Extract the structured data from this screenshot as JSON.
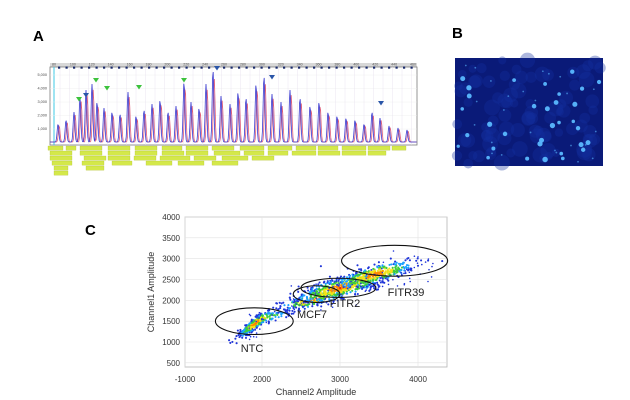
{
  "panels": {
    "a": {
      "letter": "A"
    },
    "b": {
      "letter": "B"
    },
    "c": {
      "letter": "C"
    }
  },
  "panel_a": {
    "x_ticks": [
      "80",
      "100",
      "120",
      "140",
      "160",
      "180",
      "200",
      "220",
      "240",
      "260",
      "280",
      "300",
      "320",
      "340",
      "360",
      "380",
      "400",
      "420",
      "440",
      "460"
    ],
    "y_ticks": [
      "5,000",
      "4,000",
      "3,000",
      "2,000",
      "1,000"
    ],
    "trace_colors": {
      "red": "#e0607a",
      "blue": "#3a3ad0"
    },
    "marker_colors": {
      "green": "#3cc23c",
      "blue": "#2a55a8"
    },
    "label_box_color": "#d4e84a"
  },
  "panel_b": {
    "background_color": "#0a1a78",
    "dot_color": "#5ab8ff"
  },
  "chart_data": {
    "type": "scatter",
    "title": "",
    "xlabel": "Channel2 Amplitude",
    "ylabel": "Channel1 Amplitude",
    "xlim": [
      -1000,
      4400
    ],
    "ylim": [
      400,
      4000
    ],
    "x_ticks": [
      "-1000",
      "2000",
      "3000",
      "4000"
    ],
    "y_ticks": [
      "4000",
      "3500",
      "3000",
      "2500",
      "2000",
      "1500",
      "1000",
      "500"
    ],
    "grid": true,
    "clusters": [
      {
        "name": "NTC",
        "center": [
          1750,
          1450
        ],
        "spread": [
          340,
          70
        ]
      },
      {
        "name": "MCF7",
        "center": [
          2650,
          2020
        ],
        "spread": [
          220,
          90
        ]
      },
      {
        "name": "FITR2",
        "center": [
          3000,
          2300
        ],
        "spread": [
          290,
          130
        ]
      },
      {
        "name": "FITR39",
        "center": [
          3450,
          2620
        ],
        "spread": [
          260,
          110
        ]
      }
    ],
    "gates": [
      {
        "name": "NTC",
        "center": [
          1700,
          1500
        ],
        "radii": [
          700,
          320
        ]
      },
      {
        "name": "FITR2",
        "center": [
          2980,
          2300
        ],
        "radii": [
          480,
          230
        ]
      },
      {
        "name": "MCF7",
        "center": [
          2700,
          2150
        ],
        "radii": [
          300,
          200
        ]
      },
      {
        "name": "FITR39",
        "center": [
          3700,
          2950
        ],
        "radii": [
          680,
          370
        ]
      }
    ],
    "density_colors": [
      "#2035d8",
      "#1aa0ff",
      "#3ccc3c",
      "#f2e21a",
      "#ff8a00",
      "#e81010"
    ]
  }
}
